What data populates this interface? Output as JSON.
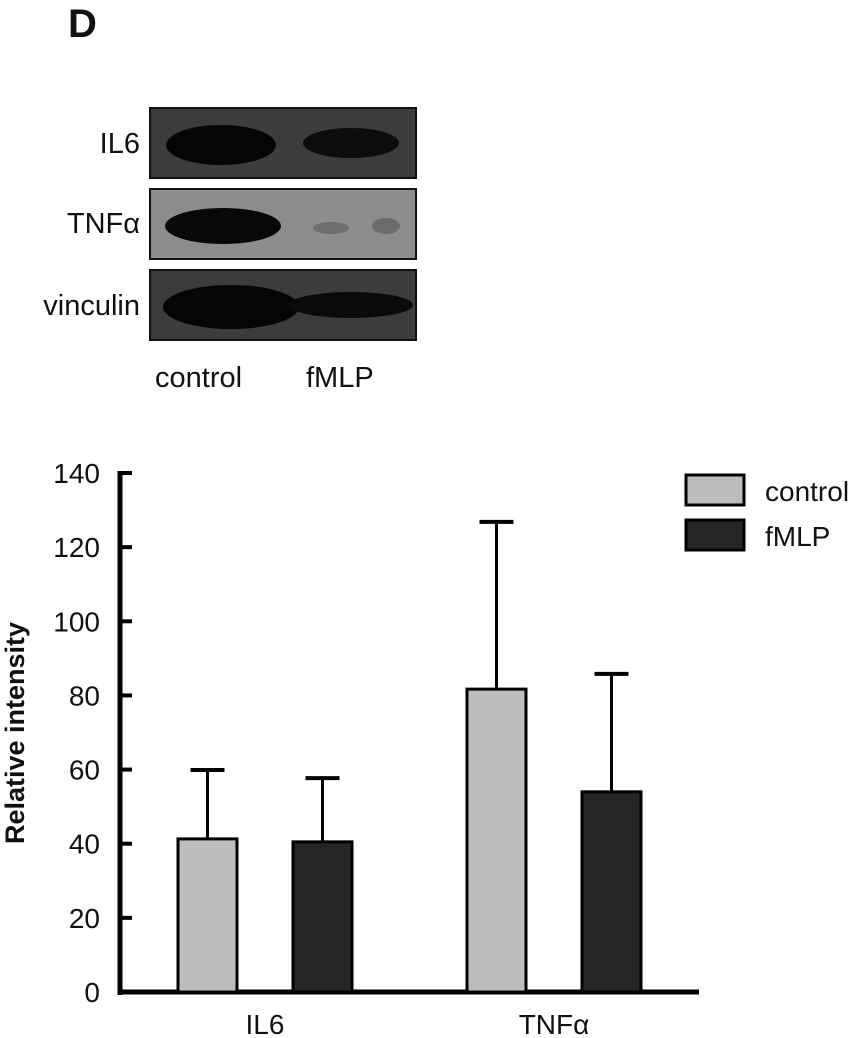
{
  "panel": {
    "letter": "D"
  },
  "blot": {
    "rows": [
      {
        "label": "IL6",
        "bg": "#3a3a3a"
      },
      {
        "label": "TNFα",
        "bg": "#8a8a8a"
      },
      {
        "label": "vinculin",
        "bg": "#3a3a3a"
      }
    ],
    "lanes": [
      "control",
      "fMLP"
    ]
  },
  "legend": {
    "items": [
      {
        "label": "control",
        "color": "#bdbdbd"
      },
      {
        "label": "fMLP",
        "color": "#262626"
      }
    ]
  },
  "chart_data": {
    "type": "bar",
    "title": "",
    "xlabel": "",
    "ylabel": "Relative intensity",
    "categories": [
      "IL6",
      "TNFα"
    ],
    "series": [
      {
        "name": "control",
        "color": "#bdbdbd",
        "values": [
          41.3,
          81.7
        ],
        "error_upper": [
          59.9,
          126.8
        ]
      },
      {
        "name": "fMLP",
        "color": "#262626",
        "values": [
          40.5,
          54.0
        ],
        "error_upper": [
          57.7,
          85.8
        ]
      }
    ],
    "ylim": [
      0,
      140
    ],
    "yticks": [
      0,
      20,
      40,
      60,
      80,
      100,
      120,
      140
    ],
    "grid": false,
    "legend_position": "top-right"
  }
}
